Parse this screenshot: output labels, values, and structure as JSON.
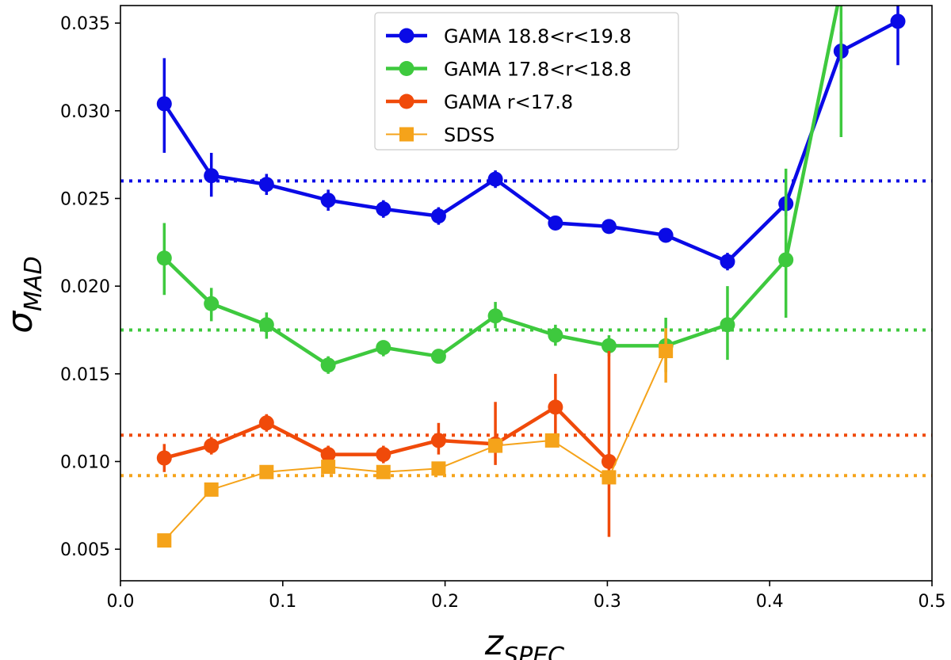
{
  "chart_data": {
    "type": "line",
    "title": "",
    "xlabel": "z",
    "xlabel_sub": "SPEC",
    "ylabel": "σ",
    "ylabel_sub": "MAD",
    "xlim": [
      0.0,
      0.5
    ],
    "ylim": [
      0.0032,
      0.036
    ],
    "xticks": [
      0.0,
      0.1,
      0.2,
      0.3,
      0.4,
      0.5
    ],
    "xtick_labels": [
      "0.0",
      "0.1",
      "0.2",
      "0.3",
      "0.4",
      "0.5"
    ],
    "yticks": [
      0.005,
      0.01,
      0.015,
      0.02,
      0.025,
      0.03,
      0.035
    ],
    "ytick_labels": [
      "0.005",
      "0.010",
      "0.015",
      "0.020",
      "0.025",
      "0.030",
      "0.035"
    ],
    "legend_position": "top-center",
    "series": [
      {
        "name": "GAMA 18.8<r<19.8",
        "color": "#0a0ae6",
        "marker": "circle",
        "line_width": "thick",
        "reference_level": 0.026,
        "x": [
          0.027,
          0.056,
          0.09,
          0.128,
          0.162,
          0.196,
          0.231,
          0.268,
          0.301,
          0.336,
          0.374,
          0.41,
          0.444,
          0.479
        ],
        "y": [
          0.0304,
          0.0263,
          0.0258,
          0.0249,
          0.0244,
          0.024,
          0.0261,
          0.0236,
          0.0234,
          0.0229,
          0.0214,
          0.0247,
          0.0334,
          0.0351
        ],
        "err_low": [
          0.0028,
          0.0012,
          0.0006,
          0.0006,
          0.0005,
          0.0005,
          0.0005,
          0.0004,
          0.0004,
          0.0004,
          0.0005,
          0.0007,
          0.001,
          0.0025
        ],
        "err_high": [
          0.0026,
          0.0013,
          0.0006,
          0.0006,
          0.0005,
          0.0005,
          0.0005,
          0.0004,
          0.0004,
          0.0004,
          0.0005,
          0.0007,
          0.0011,
          0.0012
        ]
      },
      {
        "name": "GAMA 17.8<r<18.8",
        "color": "#3ec93e",
        "marker": "circle",
        "line_width": "thick",
        "reference_level": 0.0175,
        "x": [
          0.027,
          0.056,
          0.09,
          0.128,
          0.162,
          0.196,
          0.231,
          0.268,
          0.301,
          0.336,
          0.374,
          0.41,
          0.444
        ],
        "y": [
          0.0216,
          0.019,
          0.0178,
          0.0155,
          0.0165,
          0.016,
          0.0183,
          0.0172,
          0.0166,
          0.0166,
          0.0178,
          0.0215,
          0.037
        ],
        "err_low": [
          0.0021,
          0.001,
          0.0008,
          0.0005,
          0.0005,
          0.0004,
          0.0007,
          0.0006,
          0.0006,
          0.0015,
          0.002,
          0.0033,
          0.0085
        ],
        "err_high": [
          0.002,
          0.0009,
          0.0007,
          0.0005,
          0.0004,
          0.0004,
          0.0008,
          0.0006,
          0.0006,
          0.0016,
          0.0022,
          0.0052,
          0.001
        ]
      },
      {
        "name": "GAMA r<17.8",
        "color": "#f04a0a",
        "marker": "circle",
        "line_width": "thick",
        "reference_level": 0.0115,
        "x": [
          0.027,
          0.056,
          0.09,
          0.128,
          0.162,
          0.196,
          0.231,
          0.268,
          0.301
        ],
        "y": [
          0.0102,
          0.0109,
          0.0122,
          0.0104,
          0.0104,
          0.0112,
          0.011,
          0.0131,
          0.01
        ],
        "err_low": [
          0.0008,
          0.0005,
          0.0005,
          0.0005,
          0.0005,
          0.0008,
          0.0012,
          0.0017,
          0.0043
        ],
        "err_high": [
          0.0008,
          0.0005,
          0.0005,
          0.0005,
          0.0005,
          0.001,
          0.0024,
          0.0019,
          0.0063
        ]
      },
      {
        "name": "SDSS",
        "color": "#f5a31a",
        "marker": "square",
        "line_width": "thin",
        "reference_level": 0.0092,
        "x": [
          0.027,
          0.056,
          0.09,
          0.128,
          0.162,
          0.196,
          0.231,
          0.266,
          0.301,
          0.336
        ],
        "y": [
          0.0055,
          0.0084,
          0.0094,
          0.0097,
          0.0094,
          0.0096,
          0.0109,
          0.0112,
          0.0091,
          0.0163
        ],
        "err_low": [
          0,
          0,
          0,
          0,
          0,
          0,
          0,
          0,
          0,
          0.0018
        ],
        "err_high": [
          0,
          0,
          0,
          0,
          0,
          0,
          0,
          0,
          0,
          0.0013
        ]
      }
    ]
  }
}
